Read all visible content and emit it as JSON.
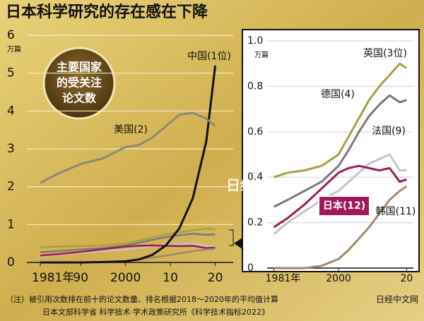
{
  "title": "日本科学研究的存在感在下降",
  "watermark": "日经中文网",
  "footnote": "（注）被引用次数排在前十的论文数量、排名根据2018～2020年的平均值计算",
  "source": "日本文部科学省 科学技术·学术政策研究所《科学技术指标2022》",
  "chart_data": [
    {
      "type": "line",
      "unit": "万篇",
      "annotation": [
        "主要国家",
        "的受关注",
        "论文数"
      ],
      "x": [
        1981,
        1985,
        1990,
        1995,
        2000,
        2003,
        2006,
        2009,
        2012,
        2015,
        2018,
        2020
      ],
      "series": [
        {
          "name": "中国(1位)",
          "color": "#111111",
          "values": [
            0,
            0,
            0,
            0.01,
            0.03,
            0.08,
            0.2,
            0.45,
            0.9,
            1.7,
            3.2,
            5.2
          ]
        },
        {
          "name": "美国(2)",
          "color": "#8c8a76",
          "values": [
            2.1,
            2.35,
            2.6,
            2.75,
            3.05,
            3.1,
            3.3,
            3.6,
            3.9,
            3.95,
            3.8,
            3.6
          ]
        }
      ],
      "xlim": [
        1978,
        2024
      ],
      "ylim": [
        0,
        6
      ],
      "xticks": [
        {
          "value": 1981,
          "label": "1981年"
        },
        {
          "value": 1990,
          "label": "90"
        },
        2000,
        {
          "value": 2010,
          "label": "10"
        },
        {
          "value": 2020,
          "label": "20"
        }
      ],
      "yticks": [
        0,
        1,
        2,
        3,
        4,
        5,
        6
      ],
      "grid": true
    },
    {
      "type": "line",
      "unit": "万篇",
      "x": [
        1981,
        1985,
        1990,
        1995,
        2000,
        2003,
        2006,
        2009,
        2012,
        2015,
        2018,
        2020
      ],
      "series": [
        {
          "name": "英国(3位)",
          "color": "#a8a040",
          "values": [
            0.4,
            0.42,
            0.43,
            0.45,
            0.5,
            0.58,
            0.66,
            0.74,
            0.8,
            0.85,
            0.9,
            0.88
          ]
        },
        {
          "name": "德国(4)",
          "color": "#7a7a7a",
          "values": [
            0.27,
            0.3,
            0.34,
            0.38,
            0.45,
            0.52,
            0.6,
            0.67,
            0.72,
            0.76,
            0.73,
            0.74
          ]
        },
        {
          "name": "法国(9)",
          "color": "#c4c4c4",
          "values": [
            0.15,
            0.2,
            0.25,
            0.3,
            0.34,
            0.38,
            0.42,
            0.46,
            0.48,
            0.5,
            0.43,
            0.43
          ]
        },
        {
          "name": "日本(12)",
          "color": "#a0185a",
          "values": [
            0.18,
            0.22,
            0.28,
            0.35,
            0.42,
            0.44,
            0.45,
            0.44,
            0.43,
            0.44,
            0.38,
            0.39
          ]
        },
        {
          "name": "韩国(11)",
          "color": "#a08a6a",
          "values": [
            0,
            0,
            0,
            0.01,
            0.04,
            0.08,
            0.13,
            0.18,
            0.24,
            0.3,
            0.34,
            0.36
          ]
        }
      ],
      "xlim": [
        1979,
        2022
      ],
      "ylim": [
        0,
        1
      ],
      "xticks": [
        {
          "value": 1981,
          "label": "1981年"
        },
        2000,
        {
          "value": 2020,
          "label": "20"
        }
      ],
      "yticks": [
        0,
        0.2,
        0.4,
        0.6,
        0.8,
        {
          "value": 1,
          "label": "1.0"
        }
      ],
      "grid": true
    }
  ]
}
